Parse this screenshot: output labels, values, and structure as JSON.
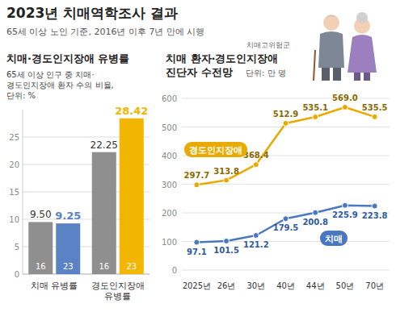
{
  "header": {
    "title": "2023년 치매역학조사 결과",
    "subtitle": "65세 이상 노인 기준, 2016년 이후 7년 만에 시행"
  },
  "chart_data": [
    {
      "type": "bar",
      "title": "치매·경도인지장애 유병률",
      "subtitle": "65세 이상 인구 중 치매·\n경도인지장애 환자 수의 비율,\n단위: %",
      "categories": [
        "치매 유병률",
        "경도인지장애\n유병률"
      ],
      "series": [
        {
          "name": "16",
          "color": "#8f8f8f",
          "values": [
            9.5,
            22.25
          ],
          "value_labels": [
            "9.50",
            "22.25"
          ]
        },
        {
          "name": "23",
          "colors": [
            "#5a83c6",
            "#f2b600"
          ],
          "values": [
            9.25,
            28.42
          ]
        }
      ],
      "ylim": [
        0,
        30
      ],
      "yticks": [
        0,
        5,
        10,
        15,
        20,
        25
      ],
      "grid": true,
      "data_labels": true
    },
    {
      "type": "line",
      "title": "치매 환자·경도인지장애\n진단자 수전망",
      "subtitle": "단위: 만 명",
      "annotations": [
        "치매고위험군"
      ],
      "categories": [
        "2025년",
        "26년",
        "30년",
        "40년",
        "44년",
        "50년",
        "70년"
      ],
      "series": [
        {
          "name": "경도인지장애",
          "color": "#e9aa00",
          "values": [
            297.7,
            313.8,
            368.4,
            512.9,
            535.1,
            569.0,
            535.5
          ],
          "value_labels": [
            "297.7",
            "313.8",
            "368.4",
            "512.9",
            "535.1",
            "569.0",
            "535.5"
          ]
        },
        {
          "name": "치매",
          "color": "#4a78c0",
          "values": [
            97.1,
            101.5,
            121.2,
            179.5,
            200.8,
            225.9,
            223.8
          ]
        }
      ],
      "ylim": [
        0,
        600
      ],
      "yticks": [
        0,
        100,
        200,
        300,
        400,
        500,
        600
      ],
      "grid": true,
      "data_labels": true,
      "marker": "circle"
    }
  ]
}
